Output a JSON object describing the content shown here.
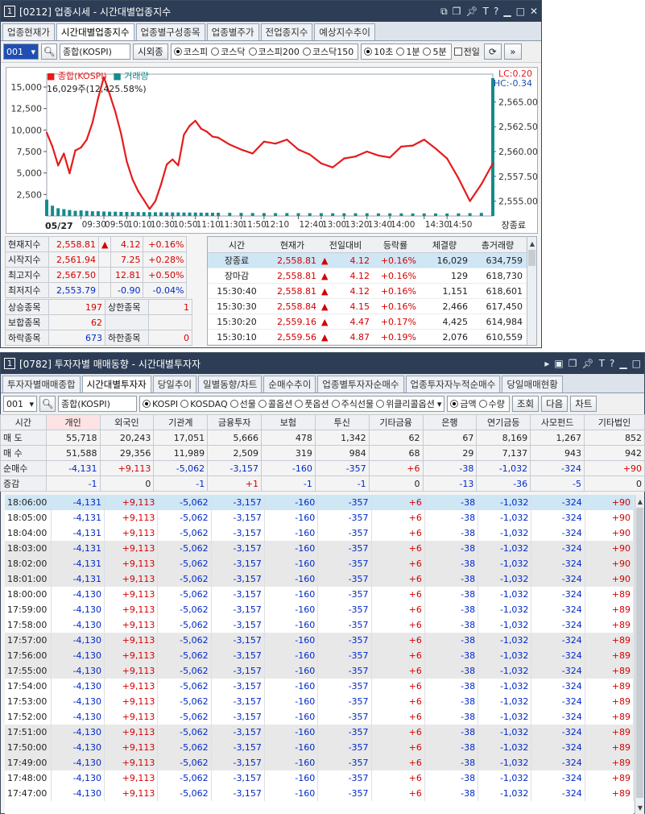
{
  "top": {
    "num": "1",
    "title": "[0212] 업종시세 - 시간대별업종지수",
    "title_icons": [
      "link-icon",
      "copy-icon",
      "pin-icon",
      "font-icon",
      "help-icon",
      "minimize-icon",
      "maximize-icon",
      "close-icon"
    ],
    "tabs": [
      "업종현재가",
      "시간대별업종지수",
      "업종별구성종목",
      "업종별주가",
      "전업종지수",
      "예상지수추이"
    ],
    "toolbar": {
      "code": "001",
      "name": "종합(KOSPI)",
      "btn_foreign": "시외종",
      "radios": [
        "코스피",
        "코스닥",
        "코스피200",
        "코스닥150"
      ],
      "intervals": [
        "10초",
        "1분",
        "5분"
      ],
      "checkbox": "전일"
    },
    "chart": {
      "legend_main": "종합(KOSPI)",
      "legend_vol": "거래량",
      "info": "16,029주(12,425.58%)",
      "lc": "LC:0.20",
      "hc": "HC:-0.34",
      "status": "장종료",
      "date": "05/27",
      "colors": {
        "line": "#e51b1b",
        "volume": "#148c8c",
        "axis": "#555555"
      }
    },
    "summary_rows": [
      {
        "label": "현재지수",
        "value": "2,558.81",
        "arrow": "▲",
        "change": "4.12",
        "pct": "+0.16%"
      },
      {
        "label": "시작지수",
        "value": "2,561.94",
        "arrow": "",
        "change": "7.25",
        "pct": "+0.28%"
      },
      {
        "label": "최고지수",
        "value": "2,567.50",
        "arrow": "",
        "change": "12.81",
        "pct": "+0.50%"
      },
      {
        "label": "최저지수",
        "value": "2,553.79",
        "arrow": "",
        "change": "-0.90",
        "pct": "-0.04%"
      }
    ],
    "count_rows": [
      {
        "l1": "상승종목",
        "v1": "197",
        "l2": "상한종목",
        "v2": "1"
      },
      {
        "l1": "보합종목",
        "v1": "62",
        "l2": "",
        "v2": ""
      },
      {
        "l1": "하락종목",
        "v1": "673",
        "l2": "하한종목",
        "v2": "0"
      }
    ],
    "tick_headers": [
      "시간",
      "현재가",
      "전일대비",
      "등락률",
      "체결량",
      "총거래량"
    ],
    "tick_rows": [
      [
        "장종료",
        "2,558.81",
        "4.12",
        "+0.16%",
        "16,029",
        "634,759"
      ],
      [
        "장마감",
        "2,558.81",
        "4.12",
        "+0.16%",
        "129",
        "618,730"
      ],
      [
        "15:30:40",
        "2,558.81",
        "4.12",
        "+0.16%",
        "1,151",
        "618,601"
      ],
      [
        "15:30:30",
        "2,558.84",
        "4.15",
        "+0.16%",
        "2,466",
        "617,450"
      ],
      [
        "15:30:20",
        "2,559.16",
        "4.47",
        "+0.17%",
        "4,425",
        "614,984"
      ],
      [
        "15:30:10",
        "2,559.56",
        "4.87",
        "+0.19%",
        "2,076",
        "610,559"
      ]
    ]
  },
  "chart_data": {
    "type": "line",
    "title": "종합(KOSPI)",
    "xlabel": "",
    "ylabel": "",
    "x_ticks": [
      "09:30",
      "09:50",
      "10:10",
      "10:30",
      "10:50",
      "11:10",
      "11:30",
      "11:50",
      "12:10",
      "12:40",
      "13:00",
      "13:20",
      "13:40",
      "14:00",
      "14:30",
      "14:50"
    ],
    "y_right_ticks": [
      "2,565.00",
      "2,562.50",
      "2,560.00",
      "2,557.50",
      "2,555.00"
    ],
    "y_left_ticks": [
      "15,000",
      "12,500",
      "10,000",
      "7,500",
      "5,000",
      "2,500"
    ],
    "ylim_price": [
      2553.5,
      2567.8
    ],
    "ylim_volume": [
      0,
      16500
    ],
    "series": [
      {
        "name": "종합(KOSPI)",
        "x": [
          "09:00",
          "09:05",
          "09:10",
          "09:15",
          "09:20",
          "09:25",
          "09:30",
          "09:35",
          "09:40",
          "09:45",
          "09:50",
          "09:55",
          "10:00",
          "10:05",
          "10:10",
          "10:15",
          "10:20",
          "10:25",
          "10:30",
          "10:35",
          "10:40",
          "10:45",
          "10:50",
          "10:55",
          "11:00",
          "11:05",
          "11:10",
          "11:15",
          "11:20",
          "11:25",
          "11:30",
          "11:40",
          "11:50",
          "12:00",
          "12:10",
          "12:20",
          "12:30",
          "12:40",
          "12:50",
          "13:00",
          "13:10",
          "13:20",
          "13:30",
          "13:40",
          "13:50",
          "14:00",
          "14:10",
          "14:20",
          "14:30",
          "14:40",
          "14:50",
          "15:00",
          "15:10",
          "15:20",
          "15:30"
        ],
        "values": [
          2561.9,
          2560.5,
          2558.6,
          2559.8,
          2557.8,
          2560.1,
          2560.4,
          2561.2,
          2562.9,
          2565.4,
          2567.5,
          2565.8,
          2564.0,
          2561.8,
          2559.0,
          2557.2,
          2556.0,
          2555.1,
          2554.2,
          2555.0,
          2556.7,
          2558.7,
          2559.2,
          2558.6,
          2561.7,
          2562.6,
          2563.1,
          2562.3,
          2562.0,
          2561.5,
          2561.4,
          2560.7,
          2560.2,
          2559.8,
          2561.0,
          2560.8,
          2561.2,
          2560.2,
          2559.7,
          2558.8,
          2558.4,
          2559.3,
          2559.5,
          2560.0,
          2559.6,
          2559.4,
          2560.5,
          2560.6,
          2561.2,
          2560.3,
          2559.3,
          2557.3,
          2555.0,
          2556.7,
          2558.8
        ]
      },
      {
        "name": "거래량",
        "note_values": "low baseline volume with spike at close",
        "values": [
          1900,
          1200,
          900,
          800,
          700,
          600,
          650,
          600,
          550,
          550,
          520,
          500,
          500,
          480,
          470,
          460,
          450,
          450,
          450,
          440,
          430,
          420,
          420,
          410,
          400,
          400,
          400,
          390,
          380,
          380,
          380,
          370,
          360,
          350,
          340,
          340,
          340,
          330,
          330,
          330,
          320,
          320,
          320,
          320,
          310,
          310,
          310,
          300,
          300,
          300,
          300,
          310,
          330,
          360,
          16029
        ]
      }
    ]
  },
  "bottom": {
    "num": "1",
    "title": "[0782] 투자자별 매매동향 - 시간대별투자자",
    "title_icons": [
      "arrow-icon",
      "window-icon",
      "copy-icon",
      "pin-icon",
      "font-icon",
      "help-icon",
      "minimize-icon",
      "close-icon"
    ],
    "tabs": [
      "투자자별매매종합",
      "시간대별투자자",
      "당일추이",
      "일별동향/차트",
      "순매수추이",
      "업종별투자자순매수",
      "업종투자자누적순매수",
      "당일매매현황"
    ],
    "toolbar": {
      "code": "001",
      "name": "종합(KOSPI)",
      "radios": [
        "KOSPI",
        "KOSDAQ",
        "선물",
        "콜옵션",
        "풋옵션",
        "주식선물",
        "위클리콜옵션"
      ],
      "unit_radios": [
        "금액",
        "수량"
      ],
      "btn_query": "조회",
      "btn_next": "다음",
      "btn_chart": "차트"
    },
    "columns": [
      "시간",
      "개인",
      "외국인",
      "기관계",
      "금융투자",
      "보험",
      "투신",
      "기타금융",
      "은행",
      "연기금등",
      "사모펀드",
      "기타법인"
    ],
    "summary": [
      {
        "label": "매 도",
        "values": [
          "55,718",
          "20,243",
          "17,051",
          "5,666",
          "478",
          "1,342",
          "62",
          "67",
          "8,169",
          "1,267",
          "852"
        ]
      },
      {
        "label": "매 수",
        "values": [
          "51,588",
          "29,356",
          "11,989",
          "2,509",
          "319",
          "984",
          "68",
          "29",
          "7,137",
          "943",
          "942"
        ]
      },
      {
        "label": "순매수",
        "values": [
          "-4,131",
          "+9,113",
          "-5,062",
          "-3,157",
          "-160",
          "-357",
          "+6",
          "-38",
          "-1,032",
          "-324",
          "+90"
        ]
      },
      {
        "label": "증감",
        "values": [
          "-1",
          "0",
          "-1",
          "+1",
          "-1",
          "-1",
          "0",
          "-13",
          "-36",
          "-5",
          "0"
        ]
      }
    ],
    "rows": [
      [
        "18:06:00",
        "-4,131",
        "+9,113",
        "-5,062",
        "-3,157",
        "-160",
        "-357",
        "+6",
        "-38",
        "-1,032",
        "-324",
        "+90"
      ],
      [
        "18:05:00",
        "-4,131",
        "+9,113",
        "-5,062",
        "-3,157",
        "-160",
        "-357",
        "+6",
        "-38",
        "-1,032",
        "-324",
        "+90"
      ],
      [
        "18:04:00",
        "-4,131",
        "+9,113",
        "-5,062",
        "-3,157",
        "-160",
        "-357",
        "+6",
        "-38",
        "-1,032",
        "-324",
        "+90"
      ],
      [
        "18:03:00",
        "-4,131",
        "+9,113",
        "-5,062",
        "-3,157",
        "-160",
        "-357",
        "+6",
        "-38",
        "-1,032",
        "-324",
        "+90"
      ],
      [
        "18:02:00",
        "-4,131",
        "+9,113",
        "-5,062",
        "-3,157",
        "-160",
        "-357",
        "+6",
        "-38",
        "-1,032",
        "-324",
        "+90"
      ],
      [
        "18:01:00",
        "-4,131",
        "+9,113",
        "-5,062",
        "-3,157",
        "-160",
        "-357",
        "+6",
        "-38",
        "-1,032",
        "-324",
        "+90"
      ],
      [
        "18:00:00",
        "-4,130",
        "+9,113",
        "-5,062",
        "-3,157",
        "-160",
        "-357",
        "+6",
        "-38",
        "-1,032",
        "-324",
        "+89"
      ],
      [
        "17:59:00",
        "-4,130",
        "+9,113",
        "-5,062",
        "-3,157",
        "-160",
        "-357",
        "+6",
        "-38",
        "-1,032",
        "-324",
        "+89"
      ],
      [
        "17:58:00",
        "-4,130",
        "+9,113",
        "-5,062",
        "-3,157",
        "-160",
        "-357",
        "+6",
        "-38",
        "-1,032",
        "-324",
        "+89"
      ],
      [
        "17:57:00",
        "-4,130",
        "+9,113",
        "-5,062",
        "-3,157",
        "-160",
        "-357",
        "+6",
        "-38",
        "-1,032",
        "-324",
        "+89"
      ],
      [
        "17:56:00",
        "-4,130",
        "+9,113",
        "-5,062",
        "-3,157",
        "-160",
        "-357",
        "+6",
        "-38",
        "-1,032",
        "-324",
        "+89"
      ],
      [
        "17:55:00",
        "-4,130",
        "+9,113",
        "-5,062",
        "-3,157",
        "-160",
        "-357",
        "+6",
        "-38",
        "-1,032",
        "-324",
        "+89"
      ],
      [
        "17:54:00",
        "-4,130",
        "+9,113",
        "-5,062",
        "-3,157",
        "-160",
        "-357",
        "+6",
        "-38",
        "-1,032",
        "-324",
        "+89"
      ],
      [
        "17:53:00",
        "-4,130",
        "+9,113",
        "-5,062",
        "-3,157",
        "-160",
        "-357",
        "+6",
        "-38",
        "-1,032",
        "-324",
        "+89"
      ],
      [
        "17:52:00",
        "-4,130",
        "+9,113",
        "-5,062",
        "-3,157",
        "-160",
        "-357",
        "+6",
        "-38",
        "-1,032",
        "-324",
        "+89"
      ],
      [
        "17:51:00",
        "-4,130",
        "+9,113",
        "-5,062",
        "-3,157",
        "-160",
        "-357",
        "+6",
        "-38",
        "-1,032",
        "-324",
        "+89"
      ],
      [
        "17:50:00",
        "-4,130",
        "+9,113",
        "-5,062",
        "-3,157",
        "-160",
        "-357",
        "+6",
        "-38",
        "-1,032",
        "-324",
        "+89"
      ],
      [
        "17:49:00",
        "-4,130",
        "+9,113",
        "-5,062",
        "-3,157",
        "-160",
        "-357",
        "+6",
        "-38",
        "-1,032",
        "-324",
        "+89"
      ],
      [
        "17:48:00",
        "-4,130",
        "+9,113",
        "-5,062",
        "-3,157",
        "-160",
        "-357",
        "+6",
        "-38",
        "-1,032",
        "-324",
        "+89"
      ],
      [
        "17:47:00",
        "-4,130",
        "+9,113",
        "-5,062",
        "-3,157",
        "-160",
        "-357",
        "+6",
        "-38",
        "-1,032",
        "-324",
        "+89"
      ]
    ]
  }
}
